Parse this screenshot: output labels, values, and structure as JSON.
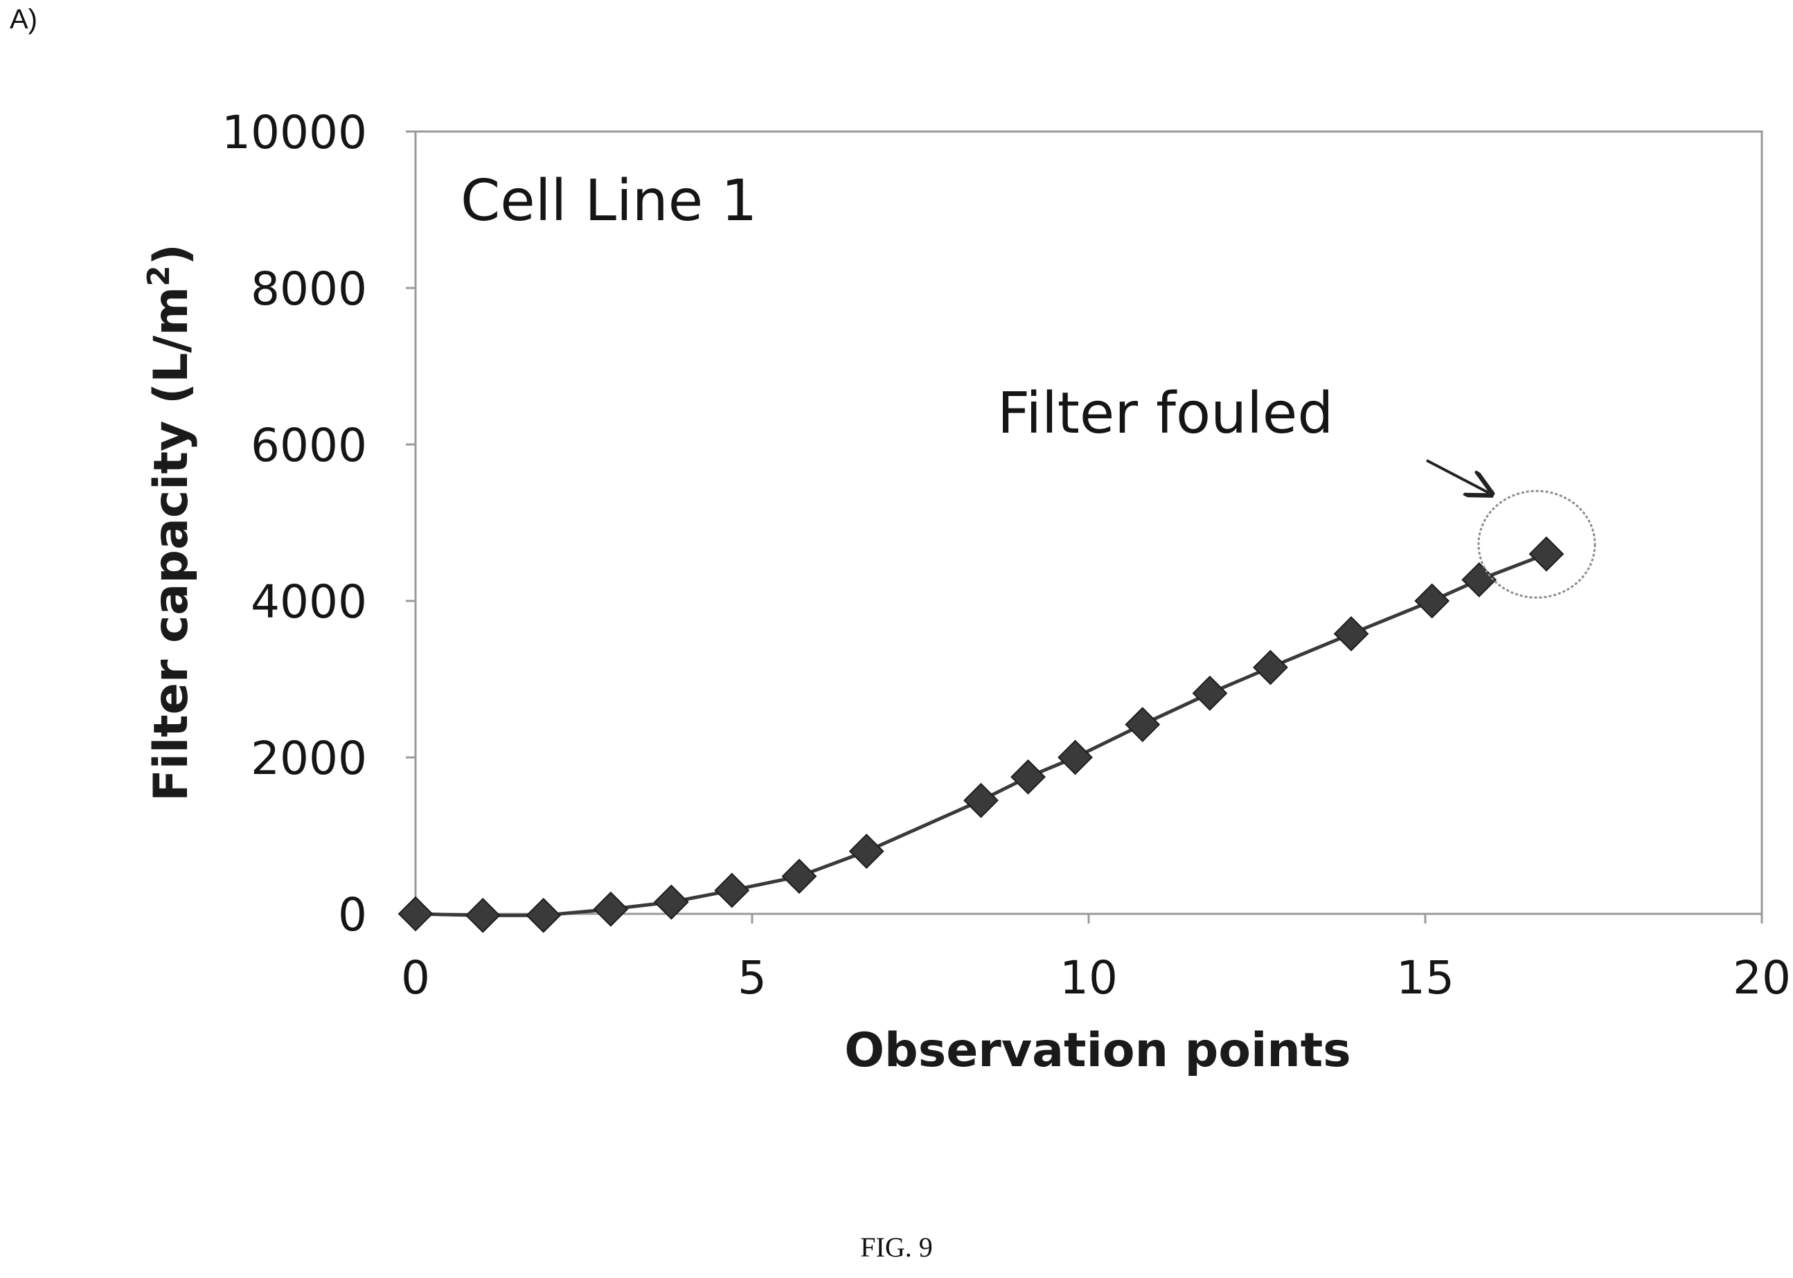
{
  "panel_label": "A)",
  "caption": "FIG. 9",
  "chart_data": {
    "type": "line",
    "title": "",
    "inset_label": "Cell Line 1",
    "xlabel": "Observation points",
    "ylabel": "Filter capacity (L/m",
    "ylabel_superscript": "2",
    "ylabel_close": ")",
    "xlim": [
      0,
      20
    ],
    "ylim": [
      0,
      10000
    ],
    "x_ticks": [
      "0",
      "5",
      "10",
      "15",
      "20"
    ],
    "y_ticks": [
      "0",
      "2000",
      "4000",
      "6000",
      "8000",
      "10000"
    ],
    "grid": false,
    "marker": "diamond",
    "series_color": "#3a3a3a",
    "series": [
      {
        "x": [
          0,
          1,
          1.9,
          2.9,
          3.8,
          4.7,
          5.7,
          6.7,
          8.4,
          9.1,
          9.8,
          10.8,
          11.8,
          12.7,
          13.9,
          15.1,
          15.8,
          16.8
        ],
        "y": [
          0,
          -20,
          -20,
          60,
          150,
          300,
          480,
          800,
          1450,
          1750,
          2000,
          2420,
          2820,
          3150,
          3580,
          4000,
          4270,
          4600
        ]
      }
    ],
    "annotations": [
      {
        "text": "Filter fouled",
        "target_x": 16.8,
        "target_y": 4600,
        "highlight": "circle"
      }
    ]
  }
}
